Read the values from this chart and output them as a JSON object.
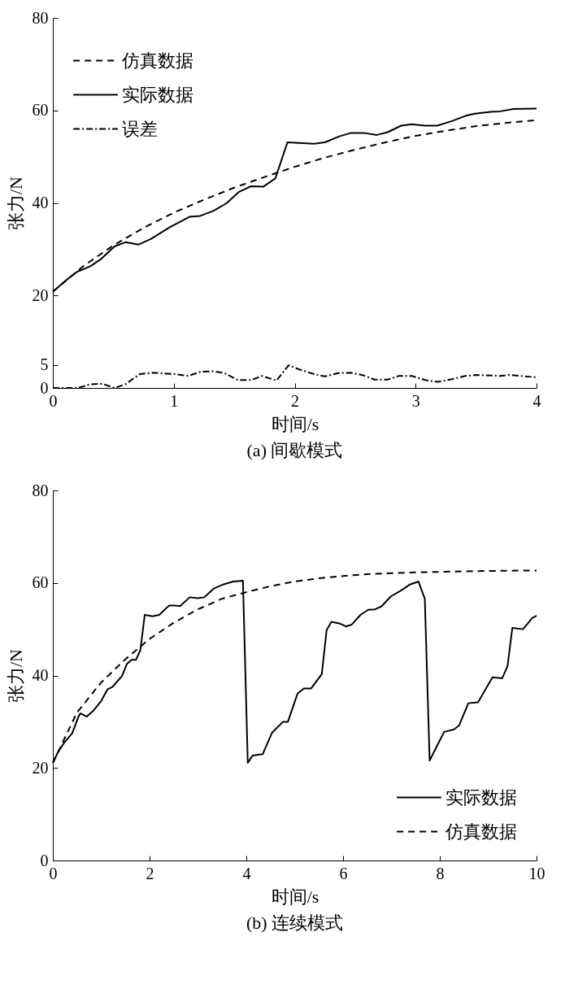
{
  "chart_data": [
    {
      "type": "line",
      "xlabel": "时间/s",
      "ylabel": "张力/N",
      "annotations": [
        "(a) 间歇模式"
      ],
      "xlim": [
        0,
        4
      ],
      "xticks": [
        0,
        1,
        2,
        3,
        4
      ],
      "ylim": [
        0,
        80
      ],
      "yticks": [
        0,
        5,
        20,
        40,
        60,
        80
      ],
      "grid": false,
      "legend": "top left",
      "marker": "none",
      "series": [
        {
          "name": "仿真数据",
          "color": "#000000",
          "line_style": "dashed",
          "x": [
            0,
            0.25,
            0.5,
            0.75,
            1,
            1.25,
            1.5,
            1.75,
            2,
            2.25,
            2.5,
            2.75,
            3,
            3.25,
            3.5,
            3.75,
            4
          ],
          "values": [
            20.8,
            26.3,
            30.8,
            34.6,
            37.9,
            40.7,
            43.3,
            45.6,
            47.8,
            49.8,
            51.5,
            53.1,
            54.5,
            55.6,
            56.6,
            57.3,
            57.9
          ]
        },
        {
          "name": "实际数据",
          "color": "#000000",
          "line_style": "solid",
          "x": [
            0,
            0.11,
            0.2,
            0.31,
            0.4,
            0.51,
            0.6,
            0.71,
            0.81,
            0.97,
            1.13,
            1.22,
            1.33,
            1.44,
            1.54,
            1.64,
            1.74,
            1.84,
            1.94,
            2.16,
            2.25,
            2.37,
            2.46,
            2.58,
            2.68,
            2.77,
            2.88,
            2.97,
            3.08,
            3.18,
            3.3,
            3.41,
            3.49,
            3.62,
            3.7,
            3.81,
            4
          ],
          "values": [
            20.8,
            23.3,
            25.1,
            26.3,
            27.9,
            30.6,
            31.5,
            31.0,
            32.2,
            34.8,
            37.0,
            37.2,
            38.3,
            40.0,
            42.4,
            43.6,
            43.5,
            45.3,
            53.1,
            52.8,
            53.1,
            54.4,
            55.1,
            55.1,
            54.7,
            55.3,
            56.7,
            57.0,
            56.7,
            56.7,
            57.7,
            58.8,
            59.3,
            59.7,
            59.8,
            60.3,
            60.4
          ]
        },
        {
          "name": "误差",
          "color": "#000000",
          "line_style": "dashdot",
          "x": [
            0,
            0.21,
            0.31,
            0.41,
            0.51,
            0.6,
            0.72,
            0.83,
            1.01,
            1.12,
            1.22,
            1.33,
            1.42,
            1.53,
            1.64,
            1.73,
            1.85,
            1.95,
            2.05,
            2.16,
            2.25,
            2.36,
            2.46,
            2.56,
            2.66,
            2.77,
            2.86,
            2.97,
            3.08,
            3.18,
            3.3,
            3.41,
            3.5,
            3.7,
            3.78,
            4
          ],
          "values": [
            0,
            0,
            0.8,
            0.9,
            0,
            0.8,
            3.0,
            3.3,
            3.0,
            2.6,
            3.5,
            3.6,
            3.2,
            1.7,
            1.7,
            2.6,
            1.6,
            4.9,
            3.9,
            3.0,
            2.5,
            3.2,
            3.3,
            2.8,
            1.8,
            1.8,
            2.6,
            2.6,
            1.7,
            1.3,
            1.9,
            2.6,
            2.8,
            2.6,
            2.8,
            2.3
          ]
        }
      ]
    },
    {
      "type": "line",
      "xlabel": "时间/s",
      "ylabel": "张力/N",
      "annotations": [
        "(b) 连续模式"
      ],
      "xlim": [
        0,
        10
      ],
      "xticks": [
        0,
        2,
        4,
        6,
        8,
        10
      ],
      "ylim": [
        0,
        80
      ],
      "yticks": [
        0,
        20,
        40,
        60,
        80
      ],
      "grid": false,
      "legend": "bottom right",
      "marker": "none",
      "series": [
        {
          "name": "实际数据",
          "color": "#000000",
          "line_style": "solid",
          "x": [
            0,
            0.1,
            0.23,
            0.4,
            0.53,
            0.57,
            0.7,
            0.83,
            1.0,
            1.13,
            1.23,
            1.43,
            1.53,
            1.63,
            1.72,
            1.81,
            1.9,
            2.06,
            2.2,
            2.4,
            2.52,
            2.63,
            2.83,
            3.0,
            3.13,
            3.33,
            3.53,
            3.73,
            3.93,
            4.03,
            4.13,
            4.34,
            4.53,
            4.76,
            4.86,
            5.06,
            5.19,
            5.34,
            5.56,
            5.66,
            5.76,
            5.94,
            6.06,
            6.18,
            6.36,
            6.52,
            6.66,
            6.79,
            6.99,
            7.19,
            7.39,
            7.56,
            7.69,
            7.79,
            7.92,
            8.09,
            8.29,
            8.4,
            8.59,
            8.79,
            9.09,
            9.29,
            9.4,
            9.5,
            9.72,
            9.91,
            10
          ],
          "values": [
            21.1,
            23.3,
            25.4,
            27.5,
            31.1,
            31.8,
            31.1,
            32.3,
            34.5,
            37.0,
            37.5,
            39.9,
            42.5,
            43.4,
            43.4,
            45.5,
            53.1,
            52.8,
            53.1,
            55.1,
            55.1,
            55.0,
            56.9,
            56.7,
            56.9,
            58.8,
            59.7,
            60.3,
            60.5,
            21.1,
            22.7,
            23.0,
            27.6,
            30.0,
            30.0,
            36.1,
            37.2,
            37.2,
            40.3,
            49.8,
            51.6,
            51.2,
            50.6,
            51.0,
            53.1,
            54.2,
            54.3,
            54.9,
            57.1,
            58.3,
            59.7,
            60.3,
            56.6,
            21.6,
            24.3,
            27.8,
            28.3,
            29.2,
            34.0,
            34.2,
            39.6,
            39.4,
            42.0,
            50.3,
            50.0,
            52.4,
            52.9
          ]
        },
        {
          "name": "仿真数据",
          "color": "#000000",
          "line_style": "dashed",
          "x": [
            0,
            0.5,
            1,
            1.5,
            2,
            2.5,
            3,
            3.5,
            4,
            4.5,
            5,
            5.5,
            6,
            6.5,
            7,
            7.5,
            8,
            9,
            10
          ],
          "values": [
            21.1,
            32.0,
            38.5,
            43.5,
            47.9,
            51.4,
            54.3,
            56.6,
            58.0,
            59.3,
            60.3,
            61.0,
            61.5,
            61.9,
            62.1,
            62.3,
            62.4,
            62.6,
            62.7
          ]
        }
      ]
    }
  ]
}
